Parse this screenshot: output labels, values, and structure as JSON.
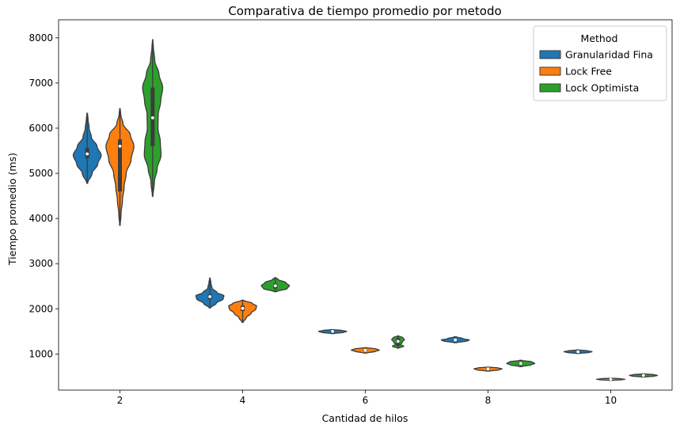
{
  "chart_data": {
    "type": "violin",
    "title": "Comparativa de tiempo promedio por metodo",
    "xlabel": "Cantidad de hilos",
    "ylabel": "Tiempo promedio (ms)",
    "categories": [
      "2",
      "4",
      "6",
      "8",
      "10"
    ],
    "yticks": [
      1000,
      2000,
      3000,
      4000,
      5000,
      6000,
      7000,
      8000
    ],
    "ylim": [
      200,
      8400
    ],
    "legend": {
      "title": "Method",
      "position": "top-right"
    },
    "series": [
      {
        "name": "Granularidad Fina",
        "color": "#1f77b4",
        "distributions": [
          {
            "min": 4780,
            "max": 6330,
            "q1": 5330,
            "median": 5430,
            "q3": 5560,
            "density": [
              [
                4780,
                0.03
              ],
              [
                5000,
                0.35
              ],
              [
                5200,
                0.75
              ],
              [
                5400,
                1.0
              ],
              [
                5600,
                0.7
              ],
              [
                5800,
                0.3
              ],
              [
                6000,
                0.14
              ],
              [
                6200,
                0.06
              ],
              [
                6330,
                0.02
              ]
            ]
          },
          {
            "min": 2020,
            "max": 2680,
            "q1": 2210,
            "median": 2270,
            "q3": 2320,
            "density": [
              [
                2020,
                0.05
              ],
              [
                2120,
                0.45
              ],
              [
                2220,
                0.95
              ],
              [
                2290,
                1.0
              ],
              [
                2360,
                0.5
              ],
              [
                2460,
                0.15
              ],
              [
                2580,
                0.07
              ],
              [
                2680,
                0.02
              ]
            ]
          },
          {
            "min": 1450,
            "max": 1540,
            "q1": 1485,
            "median": 1500,
            "q3": 1515,
            "density": [
              [
                1450,
                0.08
              ],
              [
                1480,
                0.8
              ],
              [
                1500,
                1.0
              ],
              [
                1520,
                0.7
              ],
              [
                1540,
                0.08
              ]
            ]
          },
          {
            "min": 1250,
            "max": 1380,
            "q1": 1290,
            "median": 1310,
            "q3": 1330,
            "density": [
              [
                1250,
                0.1
              ],
              [
                1290,
                0.85
              ],
              [
                1310,
                1.0
              ],
              [
                1340,
                0.55
              ],
              [
                1380,
                0.08
              ]
            ]
          },
          {
            "min": 1010,
            "max": 1090,
            "q1": 1035,
            "median": 1050,
            "q3": 1065,
            "density": [
              [
                1010,
                0.1
              ],
              [
                1035,
                0.8
              ],
              [
                1050,
                1.0
              ],
              [
                1070,
                0.7
              ],
              [
                1090,
                0.08
              ]
            ]
          }
        ]
      },
      {
        "name": "Lock Free",
        "color": "#ff7f0e",
        "distributions": [
          {
            "min": 3850,
            "max": 6430,
            "q1": 4600,
            "median": 5600,
            "q3": 5750,
            "density": [
              [
                3850,
                0.02
              ],
              [
                4100,
                0.08
              ],
              [
                4400,
                0.18
              ],
              [
                4700,
                0.3
              ],
              [
                5000,
                0.45
              ],
              [
                5300,
                0.8
              ],
              [
                5600,
                1.0
              ],
              [
                5850,
                0.75
              ],
              [
                6100,
                0.22
              ],
              [
                6300,
                0.06
              ],
              [
                6430,
                0.02
              ]
            ]
          },
          {
            "min": 1700,
            "max": 2190,
            "q1": 1950,
            "median": 2010,
            "q3": 2070,
            "density": [
              [
                1700,
                0.04
              ],
              [
                1800,
                0.25
              ],
              [
                1900,
                0.6
              ],
              [
                2000,
                0.95
              ],
              [
                2060,
                1.0
              ],
              [
                2120,
                0.7
              ],
              [
                2190,
                0.08
              ]
            ]
          },
          {
            "min": 1020,
            "max": 1140,
            "q1": 1060,
            "median": 1080,
            "q3": 1100,
            "density": [
              [
                1020,
                0.1
              ],
              [
                1060,
                0.75
              ],
              [
                1085,
                1.0
              ],
              [
                1110,
                0.8
              ],
              [
                1140,
                0.1
              ]
            ]
          },
          {
            "min": 620,
            "max": 710,
            "q1": 650,
            "median": 670,
            "q3": 685,
            "density": [
              [
                620,
                0.1
              ],
              [
                650,
                0.8
              ],
              [
                670,
                1.0
              ],
              [
                690,
                0.75
              ],
              [
                710,
                0.08
              ]
            ]
          },
          {
            "min": 415,
            "max": 465,
            "q1": 430,
            "median": 440,
            "q3": 450,
            "density": [
              [
                415,
                0.1
              ],
              [
                430,
                0.8
              ],
              [
                440,
                1.0
              ],
              [
                452,
                0.7
              ],
              [
                465,
                0.08
              ]
            ]
          }
        ]
      },
      {
        "name": "Lock Optimista",
        "color": "#2ca02c",
        "distributions": [
          {
            "min": 4490,
            "max": 7960,
            "q1": 5600,
            "median": 6230,
            "q3": 6900,
            "density": [
              [
                4490,
                0.02
              ],
              [
                4800,
                0.12
              ],
              [
                5100,
                0.32
              ],
              [
                5400,
                0.6
              ],
              [
                5700,
                0.55
              ],
              [
                6000,
                0.38
              ],
              [
                6300,
                0.4
              ],
              [
                6600,
                0.58
              ],
              [
                6900,
                0.72
              ],
              [
                7200,
                0.45
              ],
              [
                7500,
                0.15
              ],
              [
                7800,
                0.05
              ],
              [
                7960,
                0.01
              ]
            ]
          },
          {
            "min": 2380,
            "max": 2690,
            "q1": 2450,
            "median": 2510,
            "q3": 2560,
            "density": [
              [
                2380,
                0.1
              ],
              [
                2450,
                0.85
              ],
              [
                2510,
                1.0
              ],
              [
                2580,
                0.75
              ],
              [
                2650,
                0.2
              ],
              [
                2690,
                0.04
              ]
            ]
          },
          {
            "min": 1130,
            "max": 1400,
            "q1": 1180,
            "median": 1280,
            "q3": 1350,
            "density": [
              [
                1130,
                0.05
              ],
              [
                1170,
                0.4
              ],
              [
                1210,
                0.2
              ],
              [
                1260,
                0.3
              ],
              [
                1320,
                0.45
              ],
              [
                1360,
                0.35
              ],
              [
                1400,
                0.04
              ]
            ]
          },
          {
            "min": 720,
            "max": 860,
            "q1": 760,
            "median": 790,
            "q3": 820,
            "density": [
              [
                720,
                0.1
              ],
              [
                760,
                0.75
              ],
              [
                790,
                1.0
              ],
              [
                825,
                0.8
              ],
              [
                860,
                0.08
              ]
            ]
          },
          {
            "min": 490,
            "max": 560,
            "q1": 510,
            "median": 525,
            "q3": 540,
            "density": [
              [
                490,
                0.1
              ],
              [
                510,
                0.8
              ],
              [
                525,
                1.0
              ],
              [
                542,
                0.75
              ],
              [
                560,
                0.08
              ]
            ]
          }
        ]
      }
    ]
  }
}
